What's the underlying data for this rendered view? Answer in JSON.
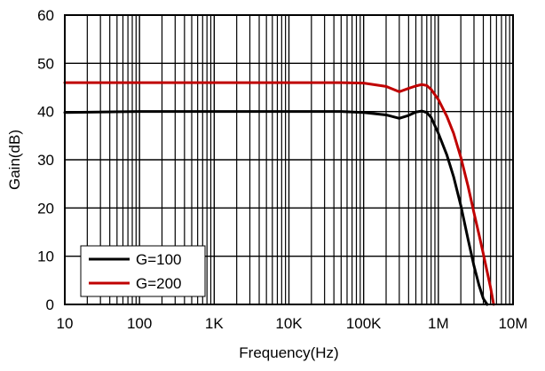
{
  "chart_data": {
    "type": "line",
    "title": "",
    "xlabel": "Frequency(Hz)",
    "ylabel": "Gain(dB)",
    "xscale": "log",
    "xlim": [
      10,
      10000000
    ],
    "ylim": [
      0,
      60
    ],
    "grid": true,
    "legend_position": "bottom-left",
    "x_ticks": [
      {
        "value": 10,
        "label": "10"
      },
      {
        "value": 100,
        "label": "100"
      },
      {
        "value": 1000,
        "label": "1K"
      },
      {
        "value": 10000,
        "label": "10K"
      },
      {
        "value": 100000,
        "label": "100K"
      },
      {
        "value": 1000000,
        "label": "1M"
      },
      {
        "value": 10000000,
        "label": "10M"
      }
    ],
    "y_ticks": [
      {
        "value": 0,
        "label": "0"
      },
      {
        "value": 10,
        "label": "10"
      },
      {
        "value": 20,
        "label": "20"
      },
      {
        "value": 30,
        "label": "30"
      },
      {
        "value": 40,
        "label": "40"
      },
      {
        "value": 50,
        "label": "50"
      },
      {
        "value": 60,
        "label": "60"
      }
    ],
    "series": [
      {
        "name": "G=100",
        "color": "#000000",
        "x": [
          10,
          100,
          1000,
          10000,
          50000,
          100000,
          200000,
          300000,
          400000,
          500000,
          600000,
          700000,
          800000,
          1000000,
          1300000,
          1600000,
          2000000,
          2500000,
          3000000,
          3500000,
          4000000,
          4500000
        ],
        "y": [
          39.8,
          40.0,
          40.0,
          40.0,
          40.0,
          39.8,
          39.3,
          38.6,
          39.2,
          39.9,
          40.1,
          39.8,
          38.8,
          35.5,
          31.0,
          26.5,
          20.5,
          13.5,
          8.0,
          4.0,
          1.2,
          0
        ]
      },
      {
        "name": "G=200",
        "color": "#c00000",
        "x": [
          10,
          100,
          1000,
          10000,
          50000,
          100000,
          200000,
          300000,
          400000,
          500000,
          600000,
          700000,
          800000,
          1000000,
          1300000,
          1600000,
          2000000,
          2500000,
          3000000,
          3500000,
          4000000,
          5000000,
          5500000
        ],
        "y": [
          46.0,
          46.0,
          46.0,
          46.0,
          46.0,
          45.9,
          45.2,
          44.1,
          44.8,
          45.3,
          45.6,
          45.4,
          44.6,
          42.5,
          39.0,
          35.5,
          30.5,
          24.5,
          19.0,
          14.5,
          10.5,
          3.5,
          0
        ]
      }
    ]
  }
}
